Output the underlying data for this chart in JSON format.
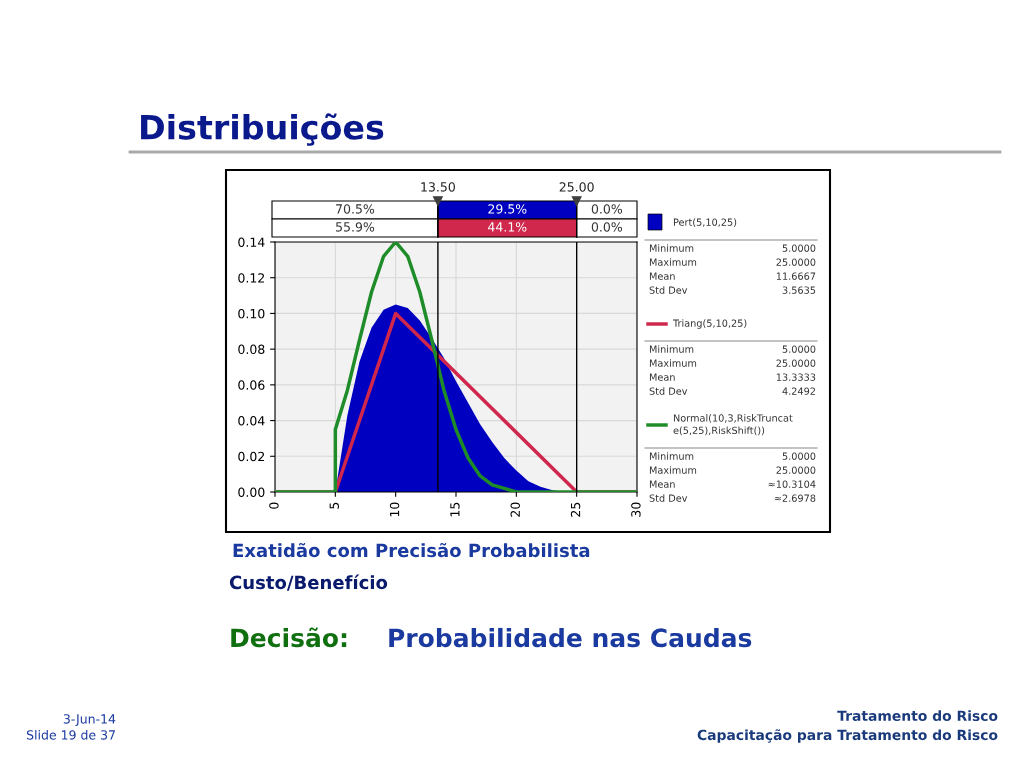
{
  "chart_data": {
    "type": "area",
    "title": "Distribuições",
    "series": [
      {
        "name": "Pert(5,10,25)",
        "color": "#0000c0",
        "x": [
          0,
          5,
          6,
          7,
          8,
          9,
          10,
          11,
          12,
          13,
          14,
          15,
          16,
          17,
          18,
          19,
          20,
          21,
          22,
          23,
          24,
          25,
          30
        ],
        "values": [
          0,
          0,
          0.043,
          0.073,
          0.092,
          0.102,
          0.105,
          0.103,
          0.096,
          0.086,
          0.075,
          0.062,
          0.05,
          0.038,
          0.028,
          0.019,
          0.012,
          0.006,
          0.003,
          0.001,
          0,
          0,
          0
        ]
      },
      {
        "name": "Triang(5,10,25)",
        "type": "line",
        "color": "#d0284c",
        "x": [
          0,
          5,
          10,
          25,
          30
        ],
        "values": [
          0,
          0,
          0.1,
          0,
          0
        ]
      },
      {
        "name": "Normal(10,3,RiskTruncate(5,25),RiskShift())",
        "type": "line",
        "color": "#1e8c28",
        "x": [
          0,
          5,
          5,
          6,
          7,
          8,
          9,
          10,
          11,
          12,
          13,
          14,
          15,
          16,
          17,
          18,
          19,
          20,
          25,
          30
        ],
        "values": [
          0,
          0,
          0.035,
          0.057,
          0.085,
          0.112,
          0.132,
          0.14,
          0.132,
          0.112,
          0.085,
          0.057,
          0.035,
          0.019,
          0.009,
          0.004,
          0.002,
          0,
          0,
          0
        ]
      }
    ],
    "xlim": [
      0,
      30
    ],
    "xticks": [
      0,
      5,
      10,
      15,
      20,
      25,
      30
    ],
    "ylim": [
      0,
      0.14
    ],
    "yticks": [
      {
        "value": 0,
        "label": "0.00"
      },
      {
        "value": 0.02,
        "label": "0.02"
      },
      {
        "value": 0.04,
        "label": "0.04"
      },
      {
        "value": 0.06,
        "label": "0.06"
      },
      {
        "value": 0.08,
        "label": "0.08"
      },
      {
        "value": 0.1,
        "label": "0.10"
      },
      {
        "value": 0.12,
        "label": "0.12"
      },
      {
        "value": 0.14,
        "label": "0.14"
      }
    ],
    "grid": true,
    "legend": "right",
    "ref_lines": [
      {
        "axis": "x",
        "value": 13.5,
        "label": "13.50",
        "color": "#000000"
      },
      {
        "axis": "x",
        "value": 25,
        "label": "25.00",
        "color": "#000000"
      }
    ],
    "annotations": [
      "70.5%",
      "29.5%",
      "0.0%",
      "55.9%",
      "44.1%",
      "0.0%",
      "Minimum",
      "5.0000",
      "Maximum",
      "25.0000",
      "Mean",
      "11.6667",
      "Std Dev",
      "3.5635",
      "Minimum",
      "5.0000",
      "Maximum",
      "25.0000",
      "Mean",
      "13.3333",
      "Std Dev",
      "4.2492",
      "Minimum",
      "5.0000",
      "Maximum",
      "25.0000",
      "Mean",
      "≈10.3104",
      "Std Dev",
      "≈2.6978",
      "Exatidão com Precisão Probabilista",
      "Custo/Benefício",
      "Decisão:",
      "Probabilidade nas Caudas",
      "3-Jun-14",
      "Slide 19 de 37",
      "Tratamento do Risco",
      "Capacitação para Tratamento do Risco"
    ]
  }
}
